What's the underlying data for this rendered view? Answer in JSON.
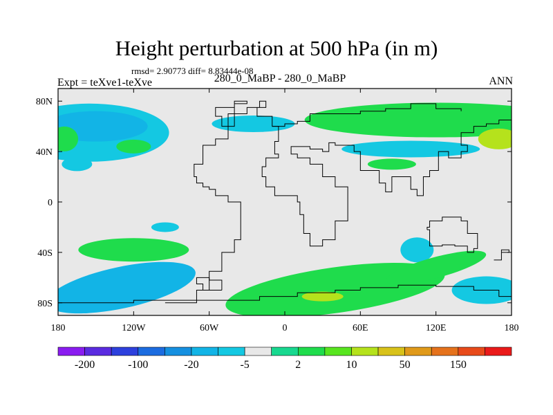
{
  "chart_data": {
    "type": "heatmap",
    "title": "Height perturbation at 500 hPa (in m)",
    "stats_text": "rmsd= 2.90773 diff= 8.83444e-08",
    "left_label": "Expt = teXve1-teXve",
    "center_label": "280_0_MaBP - 280_0_MaBP",
    "right_label": "ANN",
    "x_ticks": [
      "180",
      "120W",
      "60W",
      "0",
      "60E",
      "120E",
      "180"
    ],
    "x_tick_values": [
      -180,
      -120,
      -60,
      0,
      60,
      120,
      180
    ],
    "y_ticks": [
      "80N",
      "40N",
      "0",
      "40S",
      "80S"
    ],
    "y_tick_values": [
      80,
      40,
      0,
      -40,
      -80
    ],
    "xlim": [
      -180,
      180
    ],
    "ylim": [
      -90,
      90
    ],
    "colorbar": {
      "labels": [
        "-200",
        "-100",
        "-20",
        "-5",
        "2",
        "10",
        "50",
        "150"
      ],
      "colors": [
        "#8a1cf0",
        "#5a2be0",
        "#2d40dd",
        "#1c6ce0",
        "#1590e0",
        "#12b4e6",
        "#14c8e2",
        "#e8e8e8",
        "#18d88f",
        "#1fdc4c",
        "#58e51f",
        "#b5e21c",
        "#d8c21a",
        "#e09a1a",
        "#e5721c",
        "#e84a1a",
        "#ea1a1a"
      ]
    },
    "regions": [
      {
        "level": "-5",
        "color": "#14c8e2",
        "lon": -155,
        "lat": 55,
        "note": "N Pacific ring"
      },
      {
        "level": "-20",
        "color": "#12b4e6",
        "lon": -150,
        "lat": 60,
        "note": "N Pacific core"
      },
      {
        "level": "10",
        "color": "#1fdc4c",
        "lon": -120,
        "lat": 44,
        "note": "small high NE Pacific"
      },
      {
        "level": "10",
        "color": "#1fdc4c",
        "lon": -175,
        "lat": 50,
        "note": "W edge high"
      },
      {
        "level": "-5",
        "color": "#14c8e2",
        "lon": -165,
        "lat": 30,
        "note": "subtropical low"
      },
      {
        "level": "-5",
        "color": "#14c8e2",
        "lon": -95,
        "lat": -20,
        "note": "small low E Pacific"
      },
      {
        "level": "10",
        "color": "#1fdc4c",
        "lon": -120,
        "lat": -38,
        "note": "S Pacific high"
      },
      {
        "level": "-20",
        "color": "#12b4e6",
        "lon": -130,
        "lat": -68,
        "note": "Southern Ocean low"
      },
      {
        "level": "10",
        "color": "#1fdc4c",
        "lon": 40,
        "lat": -70,
        "note": "Antarctic high"
      },
      {
        "level": "50",
        "color": "#b5e21c",
        "lon": 30,
        "lat": -75,
        "note": "Antarctic max"
      },
      {
        "level": "-5",
        "color": "#14c8e2",
        "lon": 105,
        "lat": -38,
        "note": "Indian Ocean low"
      },
      {
        "level": "10",
        "color": "#1fdc4c",
        "lon": 120,
        "lat": -52,
        "note": "S Indian high"
      },
      {
        "level": "-5",
        "color": "#14c8e2",
        "lon": 160,
        "lat": -70,
        "note": "SE low"
      },
      {
        "level": "10",
        "color": "#1fdc4c",
        "lon": 120,
        "lat": 65,
        "note": "Siberian high"
      },
      {
        "level": "50",
        "color": "#b5e21c",
        "lon": 170,
        "lat": 50,
        "note": "NE edge max"
      },
      {
        "level": "-5",
        "color": "#14c8e2",
        "lon": 100,
        "lat": 42,
        "note": "Central Asia low"
      },
      {
        "level": "10",
        "color": "#1fdc4c",
        "lon": 85,
        "lat": 30,
        "note": "Tibet high"
      },
      {
        "level": "-5",
        "color": "#14c8e2",
        "lon": -25,
        "lat": 62,
        "note": "N Atlantic low"
      }
    ]
  }
}
